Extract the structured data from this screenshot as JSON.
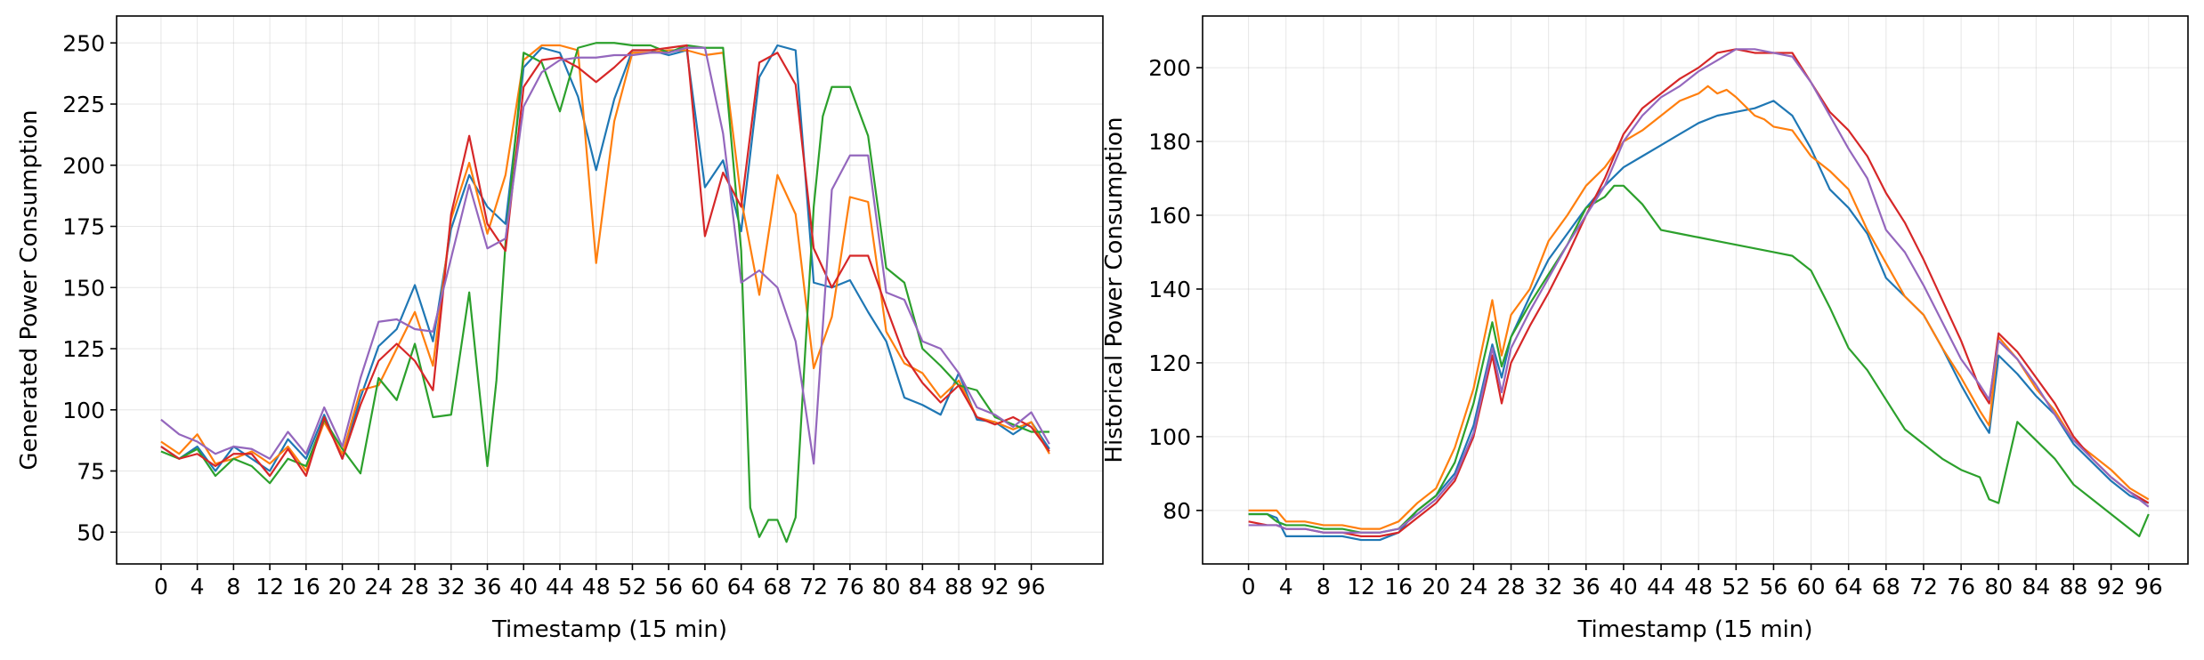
{
  "chart_data": [
    {
      "type": "line",
      "title": "",
      "xlabel": "Timestamp (15 min)",
      "ylabel": "Generated Power Consumption",
      "xlim": [
        -4.9,
        103.9
      ],
      "ylim": [
        37,
        261
      ],
      "xticks": [
        0,
        4,
        8,
        12,
        16,
        20,
        24,
        28,
        32,
        36,
        40,
        44,
        48,
        52,
        56,
        60,
        64,
        68,
        72,
        76,
        80,
        84,
        88,
        92,
        96
      ],
      "yticks": [
        50,
        75,
        100,
        125,
        150,
        175,
        200,
        225,
        250
      ],
      "grid": true,
      "colors": [
        "#1f77b4",
        "#ff7f0e",
        "#2ca02c",
        "#d62728",
        "#9467bd"
      ],
      "series": [
        {
          "color": "#1f77b4",
          "x": [
            0,
            2,
            4,
            6,
            8,
            10,
            12,
            14,
            16,
            18,
            20,
            22,
            24,
            26,
            28,
            30,
            32,
            34,
            36,
            38,
            40,
            42,
            44,
            46,
            48,
            50,
            52,
            54,
            56,
            58,
            60,
            62,
            64,
            66,
            68,
            70,
            72,
            74,
            76,
            78,
            80,
            82,
            84,
            86,
            88,
            90,
            92,
            94,
            96,
            98
          ],
          "y": [
            85,
            80,
            85,
            75,
            85,
            80,
            75,
            88,
            80,
            98,
            80,
            105,
            126,
            133,
            151,
            128,
            174,
            196,
            183,
            176,
            240,
            248,
            246,
            228,
            198,
            227,
            247,
            247,
            245,
            247,
            191,
            202,
            173,
            236,
            249,
            247,
            152,
            150,
            153,
            140,
            128,
            105,
            102,
            98,
            115,
            96,
            95,
            90,
            95,
            84
          ]
        },
        {
          "color": "#ff7f0e",
          "x": [
            0,
            2,
            4,
            6,
            8,
            10,
            12,
            14,
            16,
            18,
            20,
            22,
            24,
            26,
            28,
            30,
            32,
            34,
            36,
            38,
            40,
            42,
            44,
            46,
            48,
            50,
            52,
            54,
            56,
            58,
            60,
            62,
            64,
            66,
            68,
            70,
            72,
            74,
            76,
            78,
            80,
            82,
            84,
            86,
            88,
            90,
            92,
            94,
            96,
            98
          ],
          "y": [
            87,
            82,
            90,
            78,
            80,
            83,
            78,
            85,
            75,
            95,
            82,
            108,
            110,
            125,
            140,
            118,
            178,
            201,
            172,
            196,
            243,
            249,
            249,
            247,
            160,
            218,
            246,
            246,
            247,
            247,
            245,
            246,
            186,
            147,
            196,
            180,
            117,
            138,
            187,
            185,
            132,
            119,
            115,
            105,
            112,
            97,
            95,
            92,
            95,
            82
          ]
        },
        {
          "color": "#2ca02c",
          "x": [
            0,
            2,
            4,
            6,
            8,
            10,
            12,
            14,
            16,
            18,
            20,
            22,
            24,
            26,
            28,
            30,
            32,
            34,
            35,
            36,
            37,
            38,
            40,
            42,
            44,
            46,
            48,
            50,
            52,
            54,
            56,
            58,
            60,
            62,
            64,
            65,
            66,
            67,
            68,
            69,
            70,
            71,
            72,
            73,
            74,
            76,
            78,
            80,
            82,
            84,
            86,
            88,
            90,
            92,
            94,
            96,
            98
          ],
          "y": [
            83,
            80,
            84,
            73,
            80,
            77,
            70,
            80,
            77,
            96,
            84,
            74,
            113,
            104,
            127,
            97,
            98,
            148,
            112,
            77,
            112,
            168,
            246,
            242,
            222,
            248,
            250,
            250,
            249,
            249,
            246,
            249,
            248,
            248,
            165,
            60,
            48,
            55,
            55,
            46,
            56,
            120,
            183,
            220,
            232,
            232,
            212,
            158,
            152,
            125,
            118,
            110,
            108,
            97,
            94,
            91,
            91
          ]
        },
        {
          "color": "#d62728",
          "x": [
            0,
            2,
            4,
            6,
            8,
            10,
            12,
            14,
            16,
            18,
            20,
            22,
            24,
            26,
            28,
            30,
            32,
            34,
            36,
            38,
            40,
            42,
            44,
            46,
            48,
            50,
            52,
            54,
            56,
            58,
            60,
            62,
            64,
            66,
            68,
            70,
            72,
            74,
            76,
            78,
            80,
            82,
            84,
            86,
            88,
            90,
            92,
            94,
            96,
            98
          ],
          "y": [
            85,
            80,
            82,
            77,
            82,
            82,
            73,
            84,
            73,
            97,
            80,
            102,
            120,
            127,
            120,
            108,
            180,
            212,
            176,
            165,
            232,
            243,
            244,
            240,
            234,
            240,
            247,
            247,
            248,
            249,
            171,
            197,
            183,
            242,
            246,
            233,
            166,
            150,
            163,
            163,
            142,
            122,
            111,
            103,
            110,
            97,
            94,
            97,
            93,
            83
          ]
        },
        {
          "color": "#9467bd",
          "x": [
            0,
            2,
            4,
            6,
            8,
            10,
            12,
            14,
            16,
            18,
            20,
            22,
            24,
            26,
            28,
            30,
            32,
            34,
            36,
            38,
            40,
            42,
            44,
            46,
            48,
            50,
            52,
            54,
            56,
            58,
            60,
            62,
            64,
            66,
            68,
            70,
            72,
            74,
            76,
            78,
            80,
            82,
            84,
            86,
            88,
            90,
            92,
            94,
            96,
            98
          ],
          "y": [
            96,
            90,
            87,
            82,
            85,
            84,
            80,
            91,
            82,
            101,
            85,
            113,
            136,
            137,
            133,
            132,
            162,
            192,
            166,
            170,
            224,
            238,
            243,
            244,
            244,
            245,
            245,
            246,
            246,
            248,
            248,
            213,
            152,
            157,
            150,
            128,
            78,
            190,
            204,
            204,
            148,
            145,
            128,
            125,
            115,
            101,
            98,
            93,
            99,
            86
          ]
        }
      ]
    },
    {
      "type": "line",
      "title": "",
      "xlabel": "Timestamp (15 min)",
      "ylabel": "Historical Power Consumption",
      "xlim": [
        -4.9,
        100.2
      ],
      "ylim": [
        65.5,
        214
      ],
      "xticks": [
        0,
        4,
        8,
        12,
        16,
        20,
        24,
        28,
        32,
        36,
        40,
        44,
        48,
        52,
        56,
        60,
        64,
        68,
        72,
        76,
        80,
        84,
        88,
        92,
        96
      ],
      "yticks": [
        80,
        100,
        120,
        140,
        160,
        180,
        200
      ],
      "grid": true,
      "colors": [
        "#1f77b4",
        "#ff7f0e",
        "#2ca02c",
        "#d62728",
        "#9467bd"
      ],
      "series": [
        {
          "color": "#1f77b4",
          "x": [
            0,
            2,
            3,
            4,
            6,
            8,
            10,
            12,
            14,
            16,
            18,
            20,
            22,
            24,
            26,
            27,
            28,
            30,
            32,
            34,
            36,
            38,
            40,
            42,
            44,
            46,
            48,
            50,
            52,
            54,
            56,
            58,
            60,
            62,
            64,
            66,
            68,
            70,
            72,
            74,
            76,
            78,
            79,
            80,
            82,
            84,
            86,
            88,
            90,
            92,
            94,
            96
          ],
          "y": [
            79,
            79,
            78,
            73,
            73,
            73,
            73,
            72,
            72,
            74,
            80,
            84,
            90,
            103,
            125,
            116,
            127,
            138,
            148,
            155,
            162,
            168,
            173,
            176,
            179,
            182,
            185,
            187,
            188,
            189,
            191,
            187,
            178,
            167,
            162,
            155,
            143,
            138,
            133,
            124,
            114,
            105,
            101,
            122,
            117,
            111,
            106,
            98,
            93,
            88,
            84,
            82
          ]
        },
        {
          "color": "#ff7f0e",
          "x": [
            0,
            2,
            3,
            4,
            6,
            8,
            10,
            12,
            14,
            16,
            18,
            20,
            22,
            24,
            26,
            27,
            28,
            30,
            32,
            34,
            36,
            38,
            40,
            42,
            44,
            46,
            48,
            49,
            50,
            51,
            52,
            54,
            55,
            56,
            58,
            60,
            62,
            64,
            66,
            68,
            70,
            72,
            74,
            76,
            78,
            79,
            80,
            82,
            84,
            86,
            88,
            90,
            92,
            94,
            96
          ],
          "y": [
            80,
            80,
            80,
            77,
            77,
            76,
            76,
            75,
            75,
            77,
            82,
            86,
            97,
            113,
            137,
            122,
            133,
            140,
            153,
            160,
            168,
            173,
            180,
            183,
            187,
            191,
            193,
            195,
            193,
            194,
            192,
            187,
            186,
            184,
            183,
            176,
            172,
            167,
            156,
            147,
            138,
            133,
            124,
            116,
            107,
            103,
            127,
            121,
            113,
            107,
            99,
            95,
            91,
            86,
            83
          ]
        },
        {
          "color": "#2ca02c",
          "x": [
            0,
            2,
            3,
            4,
            6,
            8,
            10,
            12,
            14,
            16,
            18,
            20,
            22,
            24,
            26,
            27,
            28,
            30,
            32,
            34,
            36,
            38,
            39,
            40,
            42,
            44,
            46,
            48,
            50,
            52,
            54,
            56,
            58,
            60,
            62,
            64,
            66,
            68,
            70,
            72,
            74,
            76,
            78,
            79,
            80,
            82,
            84,
            86,
            88,
            90,
            92,
            94,
            95,
            96
          ],
          "y": [
            79,
            79,
            77,
            76,
            76,
            75,
            75,
            74,
            74,
            75,
            80,
            84,
            93,
            109,
            131,
            119,
            127,
            136,
            144,
            152,
            162,
            165,
            168,
            168,
            163,
            156,
            155,
            154,
            153,
            152,
            151,
            150,
            149,
            145,
            135,
            124,
            118,
            110,
            102,
            98,
            94,
            91,
            89,
            83,
            82,
            104,
            99,
            94,
            87,
            83,
            79,
            75,
            73,
            79
          ]
        },
        {
          "color": "#d62728",
          "x": [
            0,
            2,
            3,
            4,
            6,
            8,
            10,
            12,
            14,
            16,
            18,
            20,
            22,
            24,
            26,
            27,
            28,
            30,
            32,
            34,
            36,
            38,
            40,
            42,
            44,
            46,
            48,
            50,
            52,
            54,
            56,
            58,
            60,
            62,
            64,
            66,
            68,
            70,
            72,
            74,
            76,
            78,
            79,
            80,
            82,
            84,
            86,
            88,
            90,
            92,
            94,
            96
          ],
          "y": [
            77,
            76,
            76,
            75,
            75,
            74,
            74,
            73,
            73,
            74,
            78,
            82,
            88,
            100,
            122,
            109,
            120,
            130,
            139,
            149,
            160,
            170,
            182,
            189,
            193,
            197,
            200,
            204,
            205,
            204,
            204,
            204,
            196,
            188,
            183,
            176,
            166,
            158,
            148,
            137,
            126,
            113,
            109,
            128,
            123,
            116,
            109,
            100,
            94,
            89,
            85,
            82
          ]
        },
        {
          "color": "#9467bd",
          "x": [
            0,
            2,
            3,
            4,
            6,
            8,
            10,
            12,
            14,
            16,
            18,
            20,
            22,
            24,
            26,
            27,
            28,
            30,
            32,
            34,
            36,
            38,
            40,
            42,
            44,
            46,
            48,
            50,
            52,
            54,
            56,
            58,
            60,
            62,
            64,
            66,
            68,
            70,
            72,
            74,
            76,
            78,
            79,
            80,
            82,
            84,
            86,
            88,
            90,
            92,
            94,
            96
          ],
          "y": [
            76,
            76,
            76,
            75,
            75,
            74,
            74,
            74,
            74,
            75,
            79,
            83,
            89,
            101,
            124,
            112,
            124,
            134,
            143,
            152,
            160,
            168,
            180,
            187,
            192,
            195,
            199,
            202,
            205,
            205,
            204,
            203,
            196,
            187,
            178,
            170,
            156,
            150,
            141,
            131,
            121,
            114,
            110,
            126,
            121,
            114,
            106,
            99,
            94,
            89,
            85,
            81
          ]
        }
      ]
    }
  ]
}
